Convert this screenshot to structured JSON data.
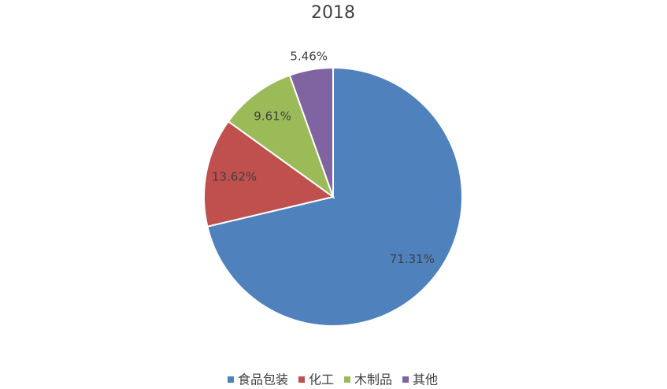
{
  "chart_data": {
    "type": "pie",
    "title": "2018",
    "categories": [
      "食品包装",
      "化工",
      "木制品",
      "其他"
    ],
    "values": [
      71.31,
      13.62,
      9.61,
      5.46
    ],
    "value_labels": [
      "71.31%",
      "13.62%",
      "9.61%",
      "5.46%"
    ],
    "colors": [
      "#4f81bd",
      "#c0504d",
      "#9bbb59",
      "#8064a2"
    ],
    "legend": "bottom"
  }
}
